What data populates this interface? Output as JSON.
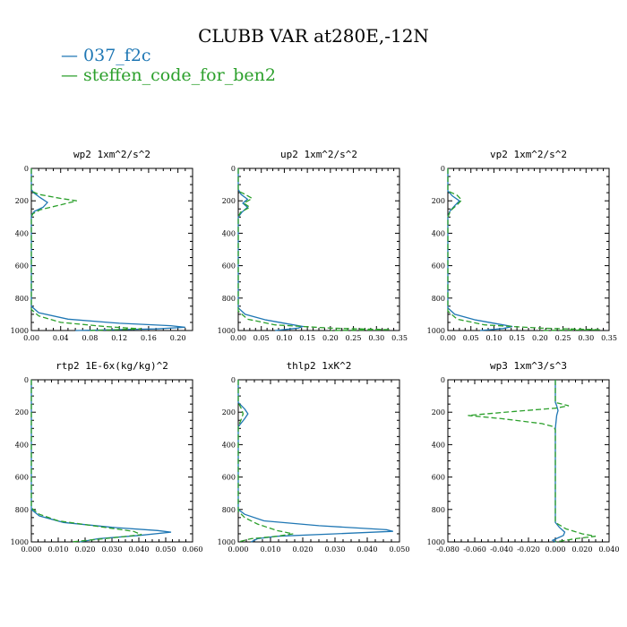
{
  "title": "CLUBB VAR at280E,-12N",
  "legend": [
    {
      "label": "037_f2c",
      "color": "#1f77b4"
    },
    {
      "label": "steffen_code_for_ben2",
      "color": "#2ca02c"
    }
  ],
  "chart_data": [
    {
      "type": "line",
      "title": "wp2  1xm^2/s^2",
      "xlim": [
        0,
        0.22
      ],
      "xticks": [
        0.0,
        0.04,
        0.08,
        0.12,
        0.16,
        0.2
      ],
      "xtick_labels": [
        "0.00",
        "0.04",
        "0.08",
        "0.12",
        "0.16",
        "0.20"
      ],
      "ylim": [
        0,
        1000
      ],
      "yticks": [
        0,
        200,
        400,
        600,
        800,
        1000
      ],
      "series": [
        {
          "name": "037_f2c",
          "color": "#1f77b4",
          "dash": "none",
          "points": [
            [
              0.0,
              0
            ],
            [
              0.0,
              130
            ],
            [
              0.003,
              150
            ],
            [
              0.012,
              180
            ],
            [
              0.022,
              210
            ],
            [
              0.016,
              240
            ],
            [
              0.004,
              265
            ],
            [
              0.0,
              290
            ],
            [
              0.0,
              850
            ],
            [
              0.01,
              890
            ],
            [
              0.05,
              930
            ],
            [
              0.12,
              955
            ],
            [
              0.19,
              970
            ],
            [
              0.21,
              980
            ],
            [
              0.17,
              990
            ],
            [
              0.06,
              1000
            ]
          ]
        },
        {
          "name": "steffen_code_for_ben2",
          "color": "#2ca02c",
          "dash": "6,3",
          "points": [
            [
              0.0,
              0
            ],
            [
              0.0,
              140
            ],
            [
              0.01,
              160
            ],
            [
              0.04,
              185
            ],
            [
              0.062,
              200
            ],
            [
              0.04,
              225
            ],
            [
              0.012,
              255
            ],
            [
              0.002,
              280
            ],
            [
              0.0,
              300
            ],
            [
              0.0,
              870
            ],
            [
              0.01,
              910
            ],
            [
              0.04,
              950
            ],
            [
              0.1,
              975
            ],
            [
              0.15,
              990
            ],
            [
              0.08,
              1000
            ]
          ]
        }
      ]
    },
    {
      "type": "line",
      "title": "up2  1xm^2/s^2",
      "xlim": [
        0,
        0.35
      ],
      "xticks": [
        0.0,
        0.05,
        0.1,
        0.15,
        0.2,
        0.25,
        0.3,
        0.35
      ],
      "xtick_labels": [
        "0.00",
        "0.05",
        "0.10",
        "0.15",
        "0.20",
        "0.25",
        "0.30",
        "0.35"
      ],
      "ylim": [
        0,
        1000
      ],
      "yticks": [
        0,
        200,
        400,
        600,
        800,
        1000
      ],
      "series": [
        {
          "name": "037_f2c",
          "color": "#1f77b4",
          "dash": "none",
          "points": [
            [
              0.0,
              0
            ],
            [
              0.0,
              130
            ],
            [
              0.006,
              160
            ],
            [
              0.02,
              190
            ],
            [
              0.01,
              215
            ],
            [
              0.02,
              240
            ],
            [
              0.008,
              270
            ],
            [
              0.0,
              300
            ],
            [
              0.0,
              860
            ],
            [
              0.015,
              900
            ],
            [
              0.06,
              935
            ],
            [
              0.11,
              960
            ],
            [
              0.14,
              975
            ],
            [
              0.13,
              985
            ],
            [
              0.08,
              1000
            ]
          ]
        },
        {
          "name": "steffen_code_for_ben2",
          "color": "#2ca02c",
          "dash": "6,3",
          "points": [
            [
              0.0,
              0
            ],
            [
              0.0,
              140
            ],
            [
              0.015,
              160
            ],
            [
              0.03,
              185
            ],
            [
              0.012,
              215
            ],
            [
              0.025,
              240
            ],
            [
              0.005,
              270
            ],
            [
              0.0,
              300
            ],
            [
              0.0,
              880
            ],
            [
              0.02,
              930
            ],
            [
              0.08,
              965
            ],
            [
              0.2,
              985
            ],
            [
              0.33,
              995
            ],
            [
              0.2,
              1000
            ]
          ]
        }
      ]
    },
    {
      "type": "line",
      "title": "vp2  1xm^2/s^2",
      "xlim": [
        0,
        0.35
      ],
      "xticks": [
        0.0,
        0.05,
        0.1,
        0.15,
        0.2,
        0.25,
        0.3,
        0.35
      ],
      "xtick_labels": [
        "0.00",
        "0.05",
        "0.10",
        "0.15",
        "0.20",
        "0.25",
        "0.30",
        "0.35"
      ],
      "ylim": [
        0,
        1000
      ],
      "yticks": [
        0,
        200,
        400,
        600,
        800,
        1000
      ],
      "series": [
        {
          "name": "037_f2c",
          "color": "#1f77b4",
          "dash": "none",
          "points": [
            [
              0.0,
              0
            ],
            [
              0.0,
              140
            ],
            [
              0.01,
              170
            ],
            [
              0.025,
              200
            ],
            [
              0.015,
              230
            ],
            [
              0.004,
              265
            ],
            [
              0.0,
              300
            ],
            [
              0.0,
              860
            ],
            [
              0.015,
              900
            ],
            [
              0.06,
              935
            ],
            [
              0.11,
              960
            ],
            [
              0.14,
              975
            ],
            [
              0.12,
              988
            ],
            [
              0.07,
              1000
            ]
          ]
        },
        {
          "name": "steffen_code_for_ben2",
          "color": "#2ca02c",
          "dash": "6,3",
          "points": [
            [
              0.0,
              0
            ],
            [
              0.0,
              140
            ],
            [
              0.02,
              165
            ],
            [
              0.03,
              195
            ],
            [
              0.02,
              225
            ],
            [
              0.006,
              260
            ],
            [
              0.0,
              300
            ],
            [
              0.0,
              880
            ],
            [
              0.02,
              930
            ],
            [
              0.08,
              965
            ],
            [
              0.2,
              985
            ],
            [
              0.33,
              995
            ],
            [
              0.2,
              1000
            ]
          ]
        }
      ]
    },
    {
      "type": "line",
      "title": "rtp2  1E-6x(kg/kg)^2",
      "xlim": [
        0,
        0.06
      ],
      "xticks": [
        0.0,
        0.01,
        0.02,
        0.03,
        0.04,
        0.05,
        0.06
      ],
      "xtick_labels": [
        "0.000",
        "0.010",
        "0.020",
        "0.030",
        "0.040",
        "0.050",
        "0.060"
      ],
      "ylim": [
        0,
        1000
      ],
      "yticks": [
        0,
        200,
        400,
        600,
        800,
        1000
      ],
      "series": [
        {
          "name": "037_f2c",
          "color": "#1f77b4",
          "dash": "none",
          "points": [
            [
              0.0,
              0
            ],
            [
              0.0,
              800
            ],
            [
              0.003,
              840
            ],
            [
              0.012,
              880
            ],
            [
              0.03,
              910
            ],
            [
              0.047,
              930
            ],
            [
              0.052,
              940
            ],
            [
              0.04,
              960
            ],
            [
              0.025,
              980
            ],
            [
              0.018,
              1000
            ]
          ]
        },
        {
          "name": "steffen_code_for_ben2",
          "color": "#2ca02c",
          "dash": "6,3",
          "points": [
            [
              0.0,
              0
            ],
            [
              0.0,
              790
            ],
            [
              0.003,
              830
            ],
            [
              0.01,
              870
            ],
            [
              0.025,
              905
            ],
            [
              0.038,
              935
            ],
            [
              0.041,
              955
            ],
            [
              0.03,
              975
            ],
            [
              0.015,
              1000
            ]
          ]
        }
      ]
    },
    {
      "type": "line",
      "title": "thlp2  1xK^2",
      "xlim": [
        0,
        0.05
      ],
      "xticks": [
        0.0,
        0.01,
        0.02,
        0.03,
        0.04,
        0.05
      ],
      "xtick_labels": [
        "0.000",
        "0.010",
        "0.020",
        "0.030",
        "0.040",
        "0.050"
      ],
      "ylim": [
        0,
        1000
      ],
      "yticks": [
        0,
        200,
        400,
        600,
        800,
        1000
      ],
      "series": [
        {
          "name": "037_f2c",
          "color": "#1f77b4",
          "dash": "none",
          "points": [
            [
              0.0,
              0
            ],
            [
              0.0,
              140
            ],
            [
              0.002,
              180
            ],
            [
              0.003,
              210
            ],
            [
              0.002,
              240
            ],
            [
              0.0,
              290
            ],
            [
              0.0,
              800
            ],
            [
              0.002,
              830
            ],
            [
              0.008,
              870
            ],
            [
              0.025,
              900
            ],
            [
              0.046,
              925
            ],
            [
              0.048,
              935
            ],
            [
              0.03,
              950
            ],
            [
              0.012,
              965
            ],
            [
              0.006,
              980
            ],
            [
              0.004,
              1000
            ]
          ]
        },
        {
          "name": "steffen_code_for_ben2",
          "color": "#2ca02c",
          "dash": "6,3",
          "points": [
            [
              0.0,
              0
            ],
            [
              0.0,
              140
            ],
            [
              0.001,
              180
            ],
            [
              0.0015,
              210
            ],
            [
              0.001,
              240
            ],
            [
              0.0,
              290
            ],
            [
              0.0,
              810
            ],
            [
              0.002,
              850
            ],
            [
              0.006,
              890
            ],
            [
              0.012,
              930
            ],
            [
              0.017,
              950
            ],
            [
              0.012,
              965
            ],
            [
              0.004,
              980
            ],
            [
              0.0,
              1000
            ]
          ]
        }
      ]
    },
    {
      "type": "line",
      "title": "wp3  1xm^3/s^3",
      "xlim": [
        -0.08,
        0.04
      ],
      "xticks": [
        -0.08,
        -0.06,
        -0.04,
        -0.02,
        0.0,
        0.02,
        0.04
      ],
      "xtick_labels": [
        "-0.080",
        "-0.060",
        "-0.040",
        "-0.020",
        "0.000",
        "0.020",
        "0.040"
      ],
      "ylim": [
        0,
        1000
      ],
      "yticks": [
        0,
        200,
        400,
        600,
        800,
        1000
      ],
      "series": [
        {
          "name": "037_f2c",
          "color": "#1f77b4",
          "dash": "none",
          "points": [
            [
              0.0,
              0
            ],
            [
              0.0,
              140
            ],
            [
              0.001,
              160
            ],
            [
              0.002,
              190
            ],
            [
              0.001,
              220
            ],
            [
              0.0,
              300
            ],
            [
              0.0,
              880
            ],
            [
              0.003,
              910
            ],
            [
              0.007,
              940
            ],
            [
              0.006,
              960
            ],
            [
              0.002,
              975
            ],
            [
              -0.002,
              990
            ],
            [
              0.0,
              1000
            ]
          ]
        },
        {
          "name": "steffen_code_for_ben2",
          "color": "#2ca02c",
          "dash": "6,3",
          "points": [
            [
              0.0,
              0
            ],
            [
              0.0,
              140
            ],
            [
              0.005,
              150
            ],
            [
              0.01,
              160
            ],
            [
              0.0,
              175
            ],
            [
              -0.03,
              195
            ],
            [
              -0.065,
              220
            ],
            [
              -0.04,
              240
            ],
            [
              -0.01,
              270
            ],
            [
              -0.001,
              290
            ],
            [
              0.0,
              310
            ],
            [
              0.0,
              880
            ],
            [
              0.008,
              920
            ],
            [
              0.02,
              950
            ],
            [
              0.03,
              965
            ],
            [
              0.015,
              980
            ],
            [
              0.0,
              1000
            ]
          ]
        }
      ]
    }
  ]
}
